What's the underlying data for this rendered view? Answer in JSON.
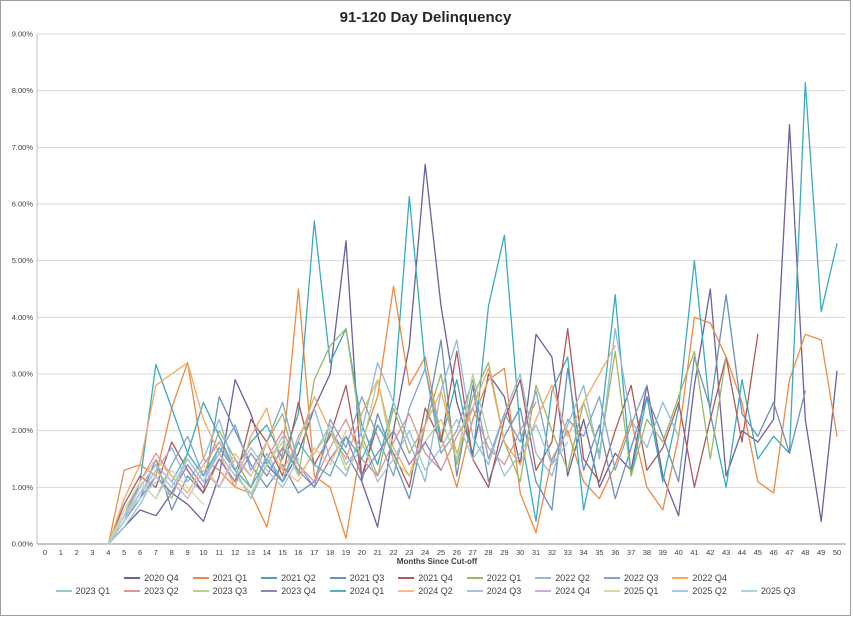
{
  "chart_data": {
    "type": "line",
    "title": "91-120 Day Delinquency",
    "xlabel": "Months Since Cut-off",
    "ylabel": "",
    "xlim": [
      0,
      50
    ],
    "ylim": [
      0,
      9
    ],
    "grid": true,
    "legend_position": "bottom",
    "y_tick_labels": [
      "0.00%",
      "1.00%",
      "2.00%",
      "3.00%",
      "4.00%",
      "5.00%",
      "6.00%",
      "7.00%",
      "8.00%",
      "9.00%"
    ],
    "x_ticks": [
      0,
      1,
      2,
      3,
      4,
      5,
      6,
      7,
      8,
      9,
      10,
      11,
      12,
      13,
      14,
      15,
      16,
      17,
      18,
      19,
      20,
      21,
      22,
      23,
      24,
      25,
      26,
      27,
      28,
      29,
      30,
      31,
      32,
      33,
      34,
      35,
      36,
      37,
      38,
      39,
      40,
      41,
      42,
      43,
      44,
      45,
      46,
      47,
      48,
      49,
      50
    ],
    "series": [
      {
        "name": "2020 Q4",
        "color": "#6F5F9C",
        "start_month": 4,
        "values": [
          0,
          0.3,
          0.6,
          0.5,
          0.9,
          0.7,
          0.4,
          1.2,
          2.9,
          2.3,
          1.4,
          1.1,
          1.6,
          2.4,
          3.0,
          5.35,
          1.1,
          0.3,
          2.0,
          3.5,
          6.7,
          4.2,
          2.5,
          1.6,
          3.0,
          2.6,
          1.4,
          3.7,
          3.3,
          1.2,
          2.2,
          1.0,
          1.6,
          1.3,
          2.8,
          1.2,
          0.5,
          2.8,
          4.5,
          1.2,
          2.0,
          1.8,
          2.2,
          7.4,
          2.2,
          0.4,
          3.05
        ]
      },
      {
        "name": "2021 Q1",
        "color": "#ED8B45",
        "start_month": 4,
        "values": [
          0,
          1.3,
          1.4,
          1.2,
          2.4,
          3.2,
          1.5,
          1.3,
          1.0,
          0.9,
          0.3,
          1.6,
          4.5,
          1.2,
          1.0,
          0.1,
          1.8,
          2.6,
          4.55,
          2.8,
          3.3,
          1.9,
          1.0,
          2.2,
          2.9,
          3.1,
          0.9,
          0.2,
          1.5,
          2.0,
          1.1,
          0.8,
          1.4,
          2.2,
          1.0,
          0.6,
          1.9,
          4.0,
          3.9,
          3.3,
          2.5,
          1.1,
          0.9,
          2.9,
          3.7,
          3.6,
          1.9
        ]
      },
      {
        "name": "2021 Q2",
        "color": "#3BAABF",
        "start_month": 4,
        "values": [
          0,
          0.4,
          1.1,
          3.17,
          2.4,
          1.6,
          2.5,
          1.9,
          1.3,
          1.8,
          2.1,
          1.5,
          2.3,
          5.7,
          3.2,
          3.8,
          2.1,
          1.4,
          2.5,
          6.13,
          3.1,
          1.8,
          2.9,
          1.5,
          4.2,
          5.45,
          2.0,
          0.4,
          2.7,
          3.3,
          0.6,
          1.9,
          4.4,
          1.2,
          2.6,
          1.1,
          2.4,
          5.0,
          2.3,
          1.0,
          2.9,
          1.5,
          1.9,
          1.6,
          8.14,
          4.1,
          5.3
        ]
      },
      {
        "name": "2021 Q3",
        "color": "#6C8EBF",
        "start_month": 4,
        "values": [
          0,
          0.5,
          0.8,
          1.5,
          0.6,
          1.2,
          0.9,
          2.6,
          2.0,
          1.4,
          1.0,
          1.4,
          0.9,
          1.1,
          2.0,
          1.6,
          1.1,
          2.3,
          1.5,
          0.8,
          2.1,
          3.6,
          1.2,
          2.8,
          1.1,
          1.9,
          2.4,
          1.1,
          0.6,
          3.1,
          1.3,
          2.1,
          0.8,
          1.7,
          2.6,
          1.9,
          1.1,
          3.3,
          2.4,
          4.4,
          2.3,
          1.9,
          2.5,
          1.6,
          2.7
        ]
      },
      {
        "name": "2021 Q4",
        "color": "#B05A5A",
        "start_month": 4,
        "values": [
          0,
          0.7,
          1.2,
          1.0,
          1.8,
          1.3,
          0.9,
          1.5,
          1.1,
          2.2,
          1.8,
          1.2,
          2.5,
          1.4,
          1.9,
          2.8,
          1.2,
          2.1,
          1.6,
          1.0,
          2.4,
          1.8,
          3.4,
          1.5,
          1.0,
          2.2,
          2.9,
          1.3,
          1.8,
          3.8,
          1.5,
          1.1,
          2.0,
          2.8,
          1.3,
          1.7,
          2.5,
          1.0,
          2.2,
          3.3,
          1.8,
          3.7
        ]
      },
      {
        "name": "2022 Q1",
        "color": "#9CB768",
        "start_month": 4,
        "values": [
          0,
          0.6,
          1.0,
          1.4,
          0.8,
          1.6,
          1.2,
          2.0,
          1.5,
          1.0,
          1.8,
          2.3,
          1.2,
          2.9,
          3.5,
          3.8,
          1.9,
          1.2,
          2.4,
          1.6,
          2.1,
          3.0,
          1.4,
          2.6,
          3.2,
          1.8,
          1.1,
          2.8,
          2.0,
          1.3,
          2.5,
          1.6,
          3.4,
          1.2,
          2.2,
          1.8,
          2.6,
          3.4,
          1.5,
          3.3
        ]
      },
      {
        "name": "2022 Q2",
        "color": "#92B9D8",
        "start_month": 4,
        "values": [
          0,
          0.4,
          0.9,
          1.3,
          1.7,
          1.1,
          1.5,
          2.2,
          1.3,
          0.8,
          1.6,
          1.1,
          1.9,
          2.4,
          1.5,
          1.2,
          2.0,
          3.2,
          2.5,
          1.8,
          1.1,
          2.7,
          3.6,
          1.9,
          1.4,
          2.3,
          3.0,
          1.6,
          1.2,
          2.1,
          2.8,
          1.5,
          3.8,
          2.2,
          1.7,
          2.5,
          1.9
        ]
      },
      {
        "name": "2022 Q3",
        "color": "#7FA6C9",
        "start_month": 4,
        "values": [
          0,
          0.5,
          1.1,
          0.8,
          1.4,
          1.9,
          1.2,
          1.6,
          2.1,
          1.3,
          1.8,
          2.5,
          1.4,
          1.0,
          2.2,
          1.7,
          2.6,
          1.9,
          1.2,
          2.4,
          3.1,
          1.6,
          2.0,
          2.9,
          1.5,
          2.3,
          1.8,
          2.7,
          1.4,
          2.2,
          1.9,
          2.6,
          1.3,
          2.1,
          2.8
        ]
      },
      {
        "name": "2022 Q4",
        "color": "#F2A964",
        "start_month": 4,
        "values": [
          0,
          0.8,
          1.4,
          2.8,
          3.0,
          3.2,
          2.2,
          1.6,
          1.0,
          1.9,
          2.4,
          1.3,
          1.8,
          2.6,
          2.0,
          1.5,
          2.3,
          2.9,
          1.7,
          1.2,
          2.1,
          2.7,
          1.6,
          2.4,
          3.1,
          1.8,
          1.4,
          2.2,
          2.8,
          1.9,
          2.5,
          3.0,
          3.5
        ]
      },
      {
        "name": "2023 Q1",
        "color": "#9DC3D4",
        "start_month": 4,
        "values": [
          0,
          0.3,
          0.7,
          1.2,
          0.9,
          1.5,
          1.1,
          1.7,
          1.3,
          0.8,
          1.4,
          1.9,
          1.2,
          1.6,
          2.1,
          1.4,
          1.8,
          1.1,
          1.5,
          2.0,
          1.3,
          1.7,
          2.2,
          1.5,
          1.9,
          1.2,
          1.6,
          2.1,
          1.4,
          1.8
        ]
      },
      {
        "name": "2023 Q2",
        "color": "#D89694",
        "start_month": 4,
        "values": [
          0,
          0.6,
          1.1,
          1.6,
          1.2,
          0.9,
          1.4,
          1.8,
          1.3,
          1.0,
          1.5,
          2.0,
          1.4,
          1.1,
          1.7,
          2.2,
          1.5,
          1.2,
          1.8,
          2.3,
          1.6,
          1.3,
          1.9,
          2.4,
          1.7,
          1.4,
          2.0,
          2.5
        ]
      },
      {
        "name": "2023 Q3",
        "color": "#BBCF8D",
        "start_month": 4,
        "values": [
          0,
          0.5,
          0.9,
          1.3,
          1.0,
          1.5,
          1.1,
          1.6,
          1.2,
          0.9,
          1.4,
          1.8,
          1.2,
          1.6,
          2.0,
          1.3,
          1.7,
          2.9,
          1.5,
          1.2,
          1.8,
          2.2,
          1.5,
          3.0,
          1.9
        ]
      },
      {
        "name": "2023 Q4",
        "color": "#9184BE",
        "start_month": 4,
        "values": [
          0,
          0.4,
          0.8,
          1.2,
          0.9,
          1.4,
          1.0,
          1.5,
          1.1,
          1.6,
          1.2,
          1.7,
          1.3,
          1.0,
          1.5,
          1.9,
          1.2,
          1.6,
          2.0,
          1.4,
          1.8,
          1.3
        ]
      },
      {
        "name": "2024 Q1",
        "color": "#55B0C4",
        "start_month": 4,
        "values": [
          0,
          0.5,
          1.0,
          1.4,
          1.1,
          1.6,
          1.2,
          1.7,
          1.3,
          1.0,
          1.5,
          1.1,
          1.8,
          1.4,
          1.2,
          1.9,
          1.5,
          2.1,
          1.6
        ]
      },
      {
        "name": "2024 Q2",
        "color": "#F4BE8A",
        "start_month": 4,
        "values": [
          0,
          0.6,
          1.1,
          1.5,
          1.2,
          0.9,
          1.4,
          1.0,
          1.6,
          1.2,
          1.8,
          1.3,
          1.1,
          1.7,
          1.4,
          2.0
        ]
      },
      {
        "name": "2024 Q3",
        "color": "#A6C3DE",
        "start_month": 4,
        "values": [
          0,
          0.4,
          0.9,
          1.3,
          1.0,
          1.5,
          1.1,
          1.6,
          1.2,
          1.7,
          1.3,
          1.0,
          1.5
        ]
      },
      {
        "name": "2024 Q4",
        "color": "#C4B3D7",
        "start_month": 4,
        "values": [
          0,
          0.5,
          1.0,
          1.4,
          1.1,
          0.8,
          1.3,
          1.0,
          1.5,
          1.2
        ]
      },
      {
        "name": "2025 Q1",
        "color": "#CFDDA8",
        "start_month": 4,
        "values": [
          0,
          0.6,
          1.1,
          0.8,
          1.3,
          1.0,
          0.7
        ]
      },
      {
        "name": "2025 Q2",
        "color": "#B3C9DB",
        "start_month": 4,
        "values": [
          0,
          0.4,
          0.9,
          1.2,
          0.8
        ]
      },
      {
        "name": "2025 Q3",
        "color": "#A9D4E4",
        "start_month": 4,
        "values": [
          0,
          0.5,
          0.8,
          1.1
        ]
      }
    ]
  }
}
